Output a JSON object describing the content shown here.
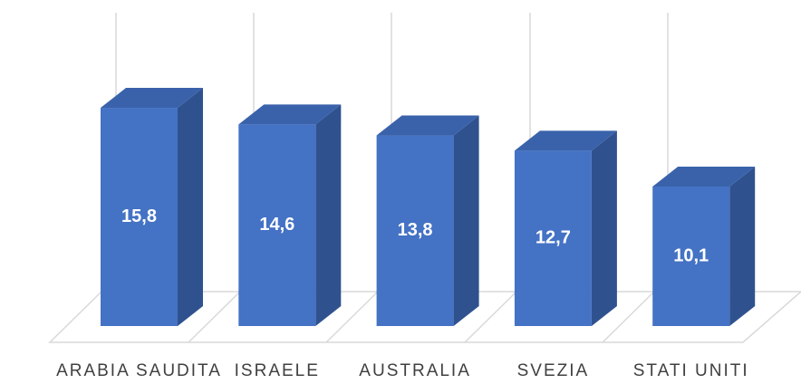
{
  "chart_data": {
    "type": "bar3d",
    "categories": [
      "ARABIA SAUDITA",
      "ISRAELE",
      "AUSTRALIA",
      "SVEZIA",
      "STATI UNITI"
    ],
    "values": [
      15.8,
      14.6,
      13.8,
      12.7,
      10.1
    ],
    "value_labels": [
      "15,8",
      "14,6",
      "13,8",
      "12,7",
      "10,1"
    ],
    "color": "#4472c4"
  }
}
